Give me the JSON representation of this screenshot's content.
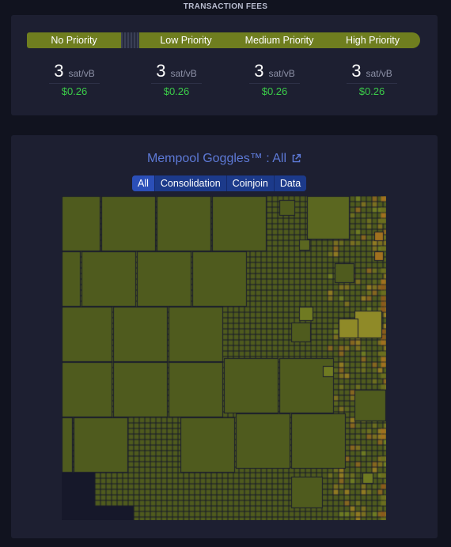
{
  "fees": {
    "section_title": "TRANSACTION FEES",
    "priorities": [
      "No Priority",
      "Low Priority",
      "Medium Priority",
      "High Priority"
    ],
    "columns": [
      {
        "rate": "3",
        "unit": "sat/vB",
        "usd": "$0.26"
      },
      {
        "rate": "3",
        "unit": "sat/vB",
        "usd": "$0.26"
      },
      {
        "rate": "3",
        "unit": "sat/vB",
        "usd": "$0.26"
      },
      {
        "rate": "3",
        "unit": "sat/vB",
        "usd": "$0.26"
      }
    ]
  },
  "goggles": {
    "title": "Mempool Goggles™ : All",
    "filters": [
      "All",
      "Consolidation",
      "Coinjoin",
      "Data"
    ],
    "active_filter": "All"
  },
  "colors": {
    "accent_green": "#6f7e1f",
    "usd_green": "#3bcc49",
    "title_blue": "#5d79d6",
    "filter_blue": "#1c3a8a"
  }
}
